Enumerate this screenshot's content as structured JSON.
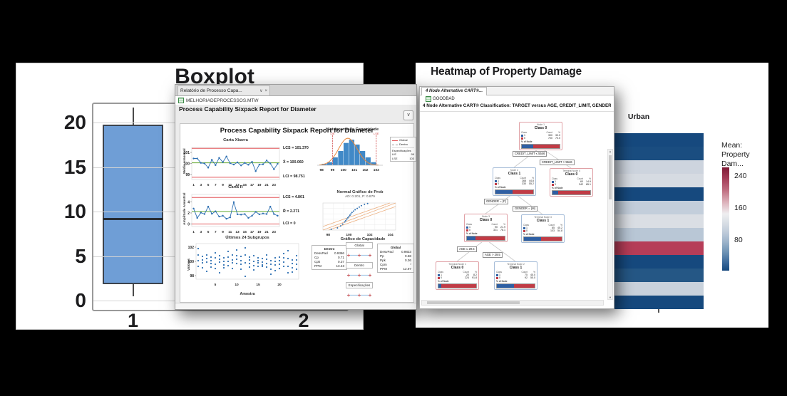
{
  "canvas": {
    "background": "#000000"
  },
  "glyphs": {
    "chevron_down": "∨",
    "close": "×",
    "arrow_up": "▲",
    "arrow_down": "▼",
    "arrow_left": "◄",
    "arrow_right": "►"
  },
  "boxplot_window": {
    "title": "Boxplot",
    "y_ticks": [
      "20",
      "15",
      "10",
      "5",
      "0"
    ],
    "x_tick_1": "1",
    "x_tick_2": "2",
    "box_fill": "#6f9ed6",
    "chart_data": {
      "type": "boxplot",
      "categories": [
        "1",
        "2"
      ],
      "series": [
        {
          "category": "1",
          "whisker_low": 0.5,
          "q1": 1.8,
          "median": 9.1,
          "q3": 19.8,
          "whisker_high": 21.7
        }
      ],
      "ylim": [
        -0.9,
        22.5
      ],
      "yticks": [
        0,
        5,
        10,
        15,
        20
      ]
    }
  },
  "capability_window": {
    "tab": {
      "title": "Relatório de Processo Capa..."
    },
    "worksheet": "MELHORIADEPROCESSOS.MTW",
    "heading": "Process Capability Sixpack Report for Diameter",
    "report_title": "Process Capability Sixpack Report for Diameter",
    "xbar_chart": {
      "title": "Carta Xbarra",
      "ylabel": "Média Amostral",
      "yticks": [
        101,
        100,
        99
      ],
      "xticks": [
        1,
        3,
        5,
        7,
        9,
        11,
        13,
        15,
        17,
        19,
        21,
        23
      ],
      "ucl": 101.37,
      "mean": 100.06,
      "lcl": 98.751,
      "ucl_label": "LCS = 101.370",
      "mean_label": "X̄ = 100.060",
      "lcl_label": "LCI = 98.751",
      "values": [
        100.45,
        100.45,
        100.05,
        100.0,
        99.62,
        100.33,
        99.85,
        100.5,
        100.12,
        100.63,
        100.02,
        99.9,
        100.1,
        99.82,
        100.05,
        99.88,
        100.15,
        99.3,
        99.9,
        99.92,
        100.27,
        100.0,
        99.47,
        99.97
      ]
    },
    "r_chart": {
      "title": "Carta R",
      "ylabel": "Amplitude Amostral",
      "yticks": [
        4,
        2,
        0
      ],
      "xticks": [
        1,
        3,
        5,
        7,
        9,
        11,
        13,
        15,
        17,
        19,
        21,
        23
      ],
      "ucl": 4.801,
      "mean": 2.271,
      "lcl": 0,
      "ucl_label": "LCS = 4.801",
      "mean_label": "R̄ = 2.271",
      "lcl_label": "LCI = 0",
      "values": [
        2.8,
        1.1,
        2.05,
        1.8,
        3.15,
        1.85,
        2.3,
        1.35,
        1.5,
        0.95,
        1.2,
        3.95,
        1.75,
        1.7,
        1.8,
        1.1,
        1.5,
        2.2,
        1.75,
        1.9,
        1.8,
        3.15,
        1.8,
        1.5
      ]
    },
    "subgroup_chart": {
      "title": "Últimos 24 Subgrupos",
      "ylabel": "Valores",
      "xlabel": "Amostra",
      "yticks": [
        102,
        100,
        98
      ],
      "xticks": [
        5,
        10,
        15,
        20
      ],
      "samples": [
        [
          101.8,
          100.9,
          100.1,
          99.3
        ],
        [
          100.7,
          100.2,
          99.8,
          99.1
        ],
        [
          100.9,
          100.4,
          99.9,
          98.6
        ],
        [
          100.6,
          100.1,
          99.7,
          99.2
        ],
        [
          101.2,
          100.5,
          99.6,
          99.0
        ],
        [
          100.8,
          100.3,
          99.9,
          98.4
        ],
        [
          100.5,
          100.0,
          99.5,
          99.1
        ],
        [
          101.4,
          100.6,
          100.0,
          99.4
        ],
        [
          100.9,
          100.2,
          99.8,
          99.0
        ],
        [
          101.6,
          100.8,
          100.3,
          99.7
        ],
        [
          100.7,
          100.1,
          99.6,
          98.9
        ],
        [
          101.9,
          100.9,
          99.8,
          97.9
        ],
        [
          100.6,
          100.2,
          99.7,
          99.2
        ],
        [
          100.8,
          100.0,
          99.4,
          98.8
        ],
        [
          100.5,
          100.1,
          99.8,
          99.3
        ],
        [
          100.4,
          99.9,
          99.5,
          99.3
        ],
        [
          100.9,
          100.3,
          99.7,
          99.2
        ],
        [
          100.1,
          99.6,
          98.9,
          98.2
        ],
        [
          100.5,
          100.0,
          99.5,
          98.7
        ],
        [
          100.6,
          100.1,
          99.6,
          99.0
        ],
        [
          101.1,
          100.5,
          99.9,
          99.3
        ],
        [
          101.5,
          100.4,
          99.3,
          98.4
        ],
        [
          100.2,
          99.7,
          99.1,
          98.5
        ],
        [
          100.8,
          100.2,
          99.6,
          98.9
        ]
      ]
    },
    "histogram": {
      "title": "Histograma de Capacidade",
      "lsl_label": "LIE",
      "usl_label": "LSE",
      "lsl": 99,
      "usl": 103,
      "xticks": [
        98,
        99,
        100,
        101,
        102,
        103
      ],
      "bin_start": 98.0,
      "bin_width": 0.5,
      "bars": [
        1,
        2,
        5,
        9,
        14,
        16,
        13,
        9,
        5,
        2
      ],
      "legend": {
        "global_label": "Global",
        "within_label": "Dentro",
        "spec_title": "Especificações",
        "spec_rows": [
          [
            "LIE",
            "99"
          ],
          [
            "LSE",
            "103"
          ]
        ]
      }
    },
    "prob_plot": {
      "title": "Normal Gráfico de Prob",
      "subtitle": "AD: 0.201, P: 0.879",
      "xticks": [
        98,
        100,
        102,
        104
      ],
      "points": [
        [
          98.3,
          3
        ],
        [
          98.9,
          8
        ],
        [
          99.2,
          15
        ],
        [
          99.4,
          22
        ],
        [
          99.6,
          30
        ],
        [
          99.7,
          35
        ],
        [
          99.8,
          40
        ],
        [
          99.9,
          45
        ],
        [
          100.0,
          50
        ],
        [
          100.1,
          55
        ],
        [
          100.2,
          60
        ],
        [
          100.3,
          65
        ],
        [
          100.45,
          70
        ],
        [
          100.6,
          75
        ],
        [
          100.8,
          80
        ],
        [
          101.0,
          85
        ],
        [
          101.2,
          90
        ],
        [
          101.5,
          95
        ],
        [
          101.8,
          98
        ]
      ]
    },
    "capability_plot": {
      "title": "Gráfico de Capacidade",
      "within_stats": {
        "title": "Dentro",
        "rows": [
          [
            "DesvPad",
            "0.9366"
          ],
          [
            "Cp",
            "0.71"
          ],
          [
            "Cpk",
            "0.37"
          ],
          [
            "PPM",
            "13.43"
          ]
        ]
      },
      "intervals": [
        "Global",
        "Dentro",
        "Especificações"
      ],
      "overall_stats": {
        "title": "Global",
        "rows": [
          [
            "DesvPad",
            "0.9823"
          ],
          [
            "Pp",
            "0.68"
          ],
          [
            "Ppk",
            "0.36"
          ],
          [
            "Cpm",
            "*"
          ],
          [
            "PPM",
            "12.97"
          ]
        ]
      }
    }
  },
  "cart_window": {
    "tab_title": "4 Node Alternative CART®...",
    "worksheet": "GOODBAD",
    "heading": "4 Node Alternative CART® Classification: TARGET versus AGE, CREDIT_LIMIT, GENDER, ...",
    "node_table_headers": [
      "Class",
      "Count",
      "%"
    ],
    "pct_row_label": "% of Node",
    "class_colors": {
      "class1": "#2e5fa3",
      "class0": "#c13b45"
    },
    "nodes": [
      {
        "id": "root",
        "subtitle": "Node 1",
        "class_label": "Class 0",
        "border": "red",
        "rows": [
          [
            "1",
            "300",
            "30.0"
          ],
          [
            "0",
            "700",
            "70.0"
          ]
        ],
        "blue_pct": 30
      },
      {
        "id": "n2",
        "subtitle": "Node 2",
        "class_label": "Class 1",
        "border": "blue",
        "rows": [
          [
            "1",
            "268",
            "44.8"
          ],
          [
            "0",
            "330",
            "55.2"
          ]
        ],
        "blue_pct": 45
      },
      {
        "id": "t4",
        "subtitle": "Terminal Node 4",
        "class_label": "Class 0",
        "border": "red",
        "rows": [
          [
            "1",
            "60",
            "14.9"
          ],
          [
            "0",
            "342",
            "85.1"
          ]
        ],
        "blue_pct": 15
      },
      {
        "id": "n3",
        "subtitle": "Node 3",
        "class_label": "Class 0",
        "border": "red",
        "rows": [
          [
            "1",
            "90",
            "21.9"
          ],
          [
            "0",
            "321",
            "78.1"
          ]
        ],
        "blue_pct": 22
      },
      {
        "id": "t3",
        "subtitle": "Terminal Node 3",
        "class_label": "Class 1",
        "border": "blue",
        "rows": [
          [
            "1",
            "85",
            "45.2"
          ],
          [
            "0",
            "103",
            "54.8"
          ]
        ],
        "blue_pct": 45
      },
      {
        "id": "t1",
        "subtitle": "Terminal Node 1",
        "class_label": "Class 0",
        "border": "red",
        "rows": [
          [
            "1",
            "20",
            "8.2"
          ],
          [
            "0",
            "224",
            "91.8"
          ]
        ],
        "blue_pct": 8
      },
      {
        "id": "t2",
        "subtitle": "Terminal Node 2",
        "class_label": "Class 1",
        "border": "blue",
        "rows": [
          [
            "1",
            "75",
            "45.0"
          ],
          [
            "0",
            "92",
            "55.0"
          ]
        ],
        "blue_pct": 45
      }
    ],
    "splits": [
      {
        "id": "s1l",
        "label": "CREDIT_LIMIT ≤ 5546"
      },
      {
        "id": "s1r",
        "label": "CREDIT_LIMIT > 5546"
      },
      {
        "id": "s2l",
        "label": "GENDER = (F)"
      },
      {
        "id": "s2r",
        "label": "GENDER = (M)"
      },
      {
        "id": "s3l",
        "label": "AGE ≤ 29.5"
      },
      {
        "id": "s3r",
        "label": "AGE > 29.5"
      }
    ]
  },
  "heatmap_window": {
    "title": "Heatmap of Property Damage",
    "column_label": "Urban",
    "legend": {
      "title_line1": "Mean:",
      "title_line2": "Property Dam...",
      "ticks": [
        "240",
        "160",
        "80"
      ]
    },
    "chart_data": {
      "type": "heatmap",
      "column": "Urban",
      "row_colors": [
        "#16497E",
        "#1A4D80",
        "#CDD4DE",
        "#D6DBE2",
        "#16497E",
        "#C3CEDB",
        "#DADEE4",
        "#B9C7D6",
        "#B63D58",
        "#16497E",
        "#255785",
        "#C9D2DC",
        "#16497E"
      ],
      "colorbar_range": [
        0,
        260
      ],
      "colorbar_ticks": [
        240,
        160,
        80
      ]
    }
  }
}
